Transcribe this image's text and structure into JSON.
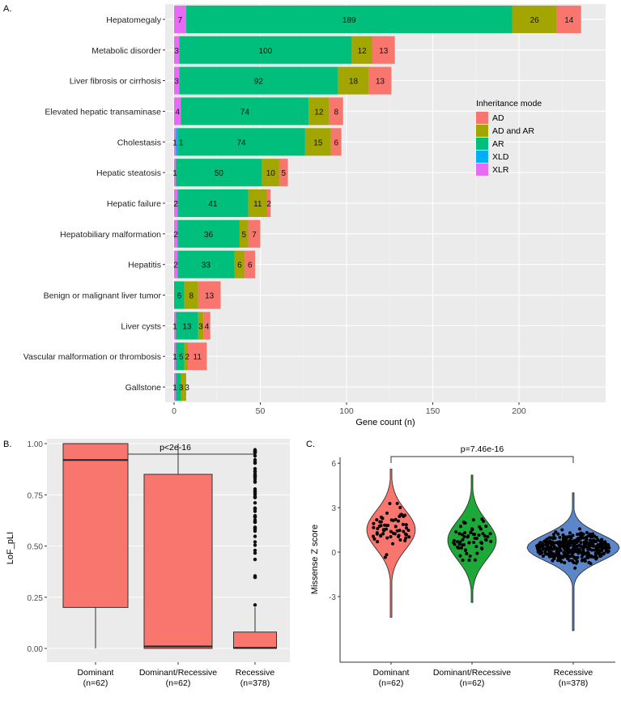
{
  "chart_data": [
    {
      "panel": "A.",
      "type": "bar",
      "orientation": "horizontal",
      "stacked": true,
      "xlabel": "Gene count (n)",
      "xlim": [
        0,
        245
      ],
      "xticks": [
        0,
        50,
        100,
        150,
        200
      ],
      "legend": {
        "title": "Inheritance mode",
        "placement": "right",
        "entries": [
          "AD",
          "AD and AR",
          "AR",
          "XLD",
          "XLR"
        ]
      },
      "colors": {
        "AD": "#F8766D",
        "AD and AR": "#A3A500",
        "AR": "#00BF7D",
        "XLD": "#00B0F6",
        "XLR": "#E76BF3"
      },
      "categories": [
        "Hepatomegaly",
        "Metabolic disorder",
        "Liver fibrosis or cirrhosis",
        "Elevated hepatic transaminase",
        "Cholestasis",
        "Hepatic steatosis",
        "Hepatic failure",
        "Hepatobiliary malformation",
        "Hepatitis",
        "Benign or malignant liver tumor",
        "Liver cysts",
        "Vascular malformation or thrombosis",
        "Gallstone"
      ],
      "series": [
        {
          "name": "XLR",
          "values": [
            7,
            3,
            3,
            4,
            1,
            1,
            2,
            2,
            2,
            0,
            1,
            1,
            1
          ]
        },
        {
          "name": "XLD",
          "values": [
            0,
            0,
            0,
            0,
            1,
            0,
            0,
            0,
            0,
            0,
            0,
            0,
            0
          ]
        },
        {
          "name": "AR",
          "values": [
            189,
            100,
            92,
            74,
            74,
            50,
            41,
            36,
            33,
            6,
            13,
            5,
            3
          ]
        },
        {
          "name": "AD and AR",
          "values": [
            26,
            12,
            18,
            12,
            15,
            10,
            11,
            5,
            6,
            8,
            3,
            2,
            3
          ]
        },
        {
          "name": "AD",
          "values": [
            14,
            13,
            13,
            8,
            6,
            5,
            2,
            7,
            6,
            13,
            4,
            11,
            0
          ]
        }
      ]
    },
    {
      "panel": "B.",
      "type": "box",
      "ylabel": "LoF_pLI",
      "ylim": [
        0,
        1
      ],
      "yticks": [
        "0.00",
        "0.25",
        "0.50",
        "0.75",
        "1.00"
      ],
      "annotation": "p<2e-16",
      "fill": "#F8766D",
      "categories": [
        "Dominant\n(n=62)",
        "Dominant/Recessive\n(n=62)",
        "Recessive\n(n=378)"
      ],
      "labels": [
        [
          "Dominant",
          "(n=62)"
        ],
        [
          "Dominant/Recessive",
          "(n=62)"
        ],
        [
          "Recessive",
          "(n=378)"
        ]
      ],
      "boxes": [
        {
          "min": 0,
          "q1": 0.2,
          "median": 0.92,
          "q3": 1.0,
          "max": 1.0
        },
        {
          "min": 0,
          "q1": 0.0,
          "median": 0.01,
          "q3": 0.85,
          "max": 1.0
        },
        {
          "min": 0,
          "q1": 0.0,
          "median": 0.003,
          "q3": 0.08,
          "max": 0.2,
          "outliers_range": [
            0.21,
            1.0
          ]
        }
      ]
    },
    {
      "panel": "C.",
      "type": "violin",
      "ylabel": "Missense Z score",
      "ylim": [
        -5.5,
        6.2
      ],
      "yticks": [
        -3,
        0,
        3,
        6
      ],
      "annotation": "p=7.46e-16",
      "labels": [
        [
          "Dominant",
          "(n=62)"
        ],
        [
          "Dominant/Recessive",
          "(n=62)"
        ],
        [
          "Recessive",
          "(n=378)"
        ]
      ],
      "groups": [
        {
          "color": "#F8766D",
          "min": -4.4,
          "max": 5.6,
          "center": 1.5,
          "n": 62
        },
        {
          "color": "#1FA83A",
          "min": -3.4,
          "max": 5.2,
          "center": 0.8,
          "n": 62
        },
        {
          "color": "#5B86C9",
          "min": -5.3,
          "max": 4.0,
          "center": 0.3,
          "n": 378
        }
      ]
    }
  ]
}
